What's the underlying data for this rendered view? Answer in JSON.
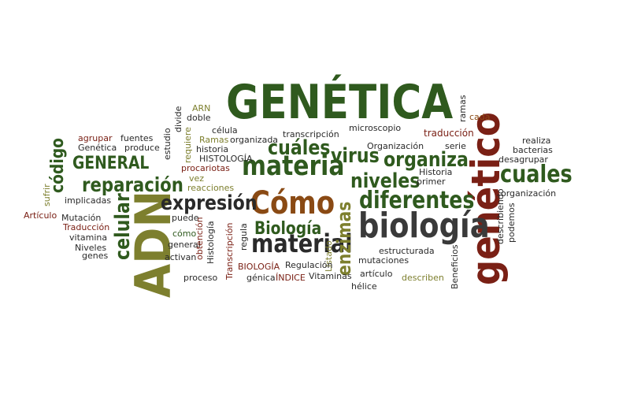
{
  "colors": {
    "dark_green": "#2f5a1e",
    "olive": "#7d7f2e",
    "maroon": "#7a2015",
    "brown": "#8a4a14",
    "dark": "#2a2a2a",
    "gray": "#3b3b3b"
  },
  "words": [
    "GENÉTICA",
    "genético",
    "ADN",
    "biología",
    "materia",
    "Cómo",
    "material",
    "Biología",
    "diferentes",
    "expresión",
    "reparación",
    "niveles",
    "organiza",
    "virus",
    "cuáles",
    "celular",
    "cuales",
    "enzimas",
    "GENERAL",
    "código",
    "traducción",
    "ARN",
    "doble",
    "ramas",
    "cada",
    "microscopio",
    "transcripción",
    "célula",
    "Ramas",
    "organizada",
    "historia",
    "HISTOLOGÍA",
    "requiere",
    "divide",
    "estudio",
    "fuentes",
    "agrupar",
    "Genética",
    "produce",
    "Organización",
    "serie",
    "realiza",
    "bacterias",
    "desagrupar",
    "procariotas",
    "vez",
    "reacciones",
    "Historia",
    "primer",
    "organización",
    "sufrir",
    "implicadas",
    "Artículo",
    "Mutación",
    "Traducción",
    "vitamina",
    "Niveles",
    "genes",
    "puede",
    "cómo",
    "general",
    "activan",
    "obtención",
    "Histología",
    "Transcripción",
    "regula",
    "Listado",
    "BIOLOGÍA",
    "Regulación",
    "estructurada",
    "mutaciones",
    "Beneficios",
    "describiendo",
    "podemos",
    "proceso",
    "génica",
    "ÍNDICE",
    "Vitaminas",
    "artículo",
    "describen",
    "hélice"
  ]
}
